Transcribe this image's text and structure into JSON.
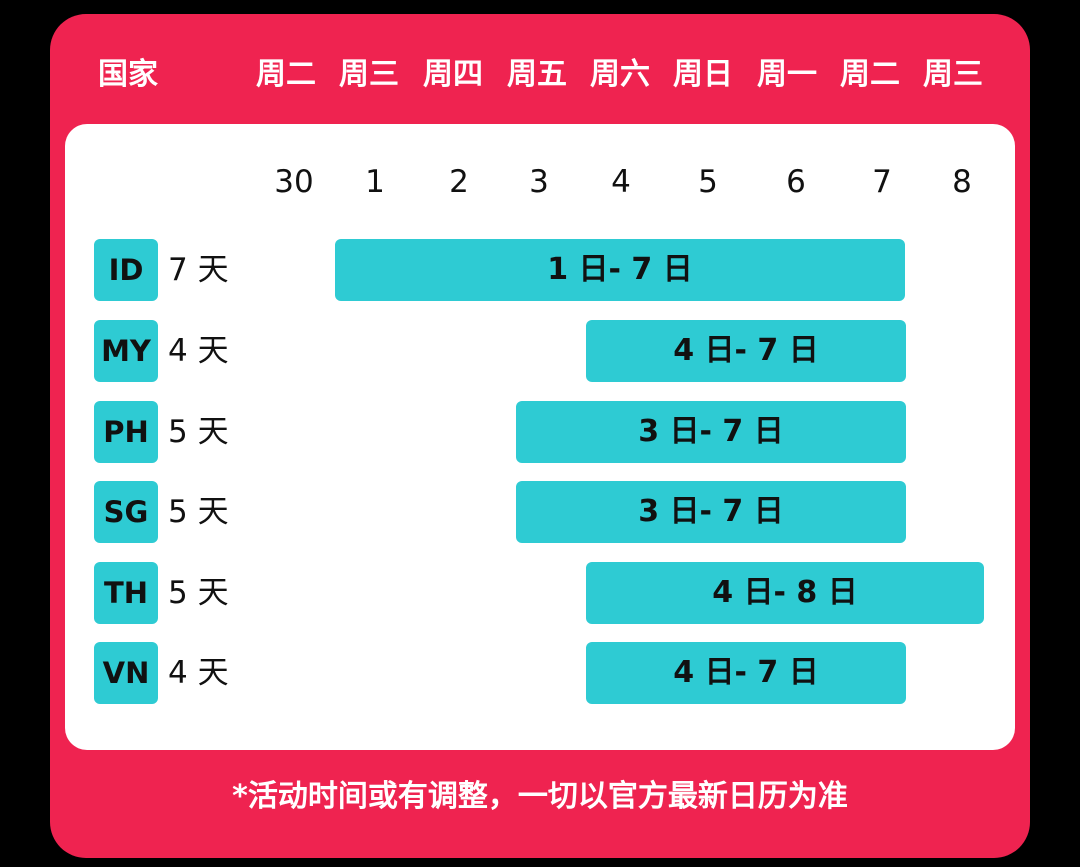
{
  "header": {
    "country_label": "国家",
    "weekdays": [
      "周二",
      "周三",
      "周四",
      "周五",
      "周六",
      "周日",
      "周一",
      "周二",
      "周三"
    ]
  },
  "dates": [
    "30",
    "1",
    "2",
    "3",
    "4",
    "5",
    "6",
    "7",
    "8"
  ],
  "rows": [
    {
      "code": "ID",
      "duration": "7 天",
      "period": "1 日- 7 日"
    },
    {
      "code": "MY",
      "duration": "4 天",
      "period": "4 日- 7 日"
    },
    {
      "code": "PH",
      "duration": "5 天",
      "period": "3 日- 7 日"
    },
    {
      "code": "SG",
      "duration": "5 天",
      "period": "3 日- 7 日"
    },
    {
      "code": "TH",
      "duration": "5 天",
      "period": "4 日- 8 日"
    },
    {
      "code": "VN",
      "duration": "4 天",
      "period": "4 日- 7 日"
    }
  ],
  "footnote": "*活动时间或有调整，一切以官方最新日历为准"
}
